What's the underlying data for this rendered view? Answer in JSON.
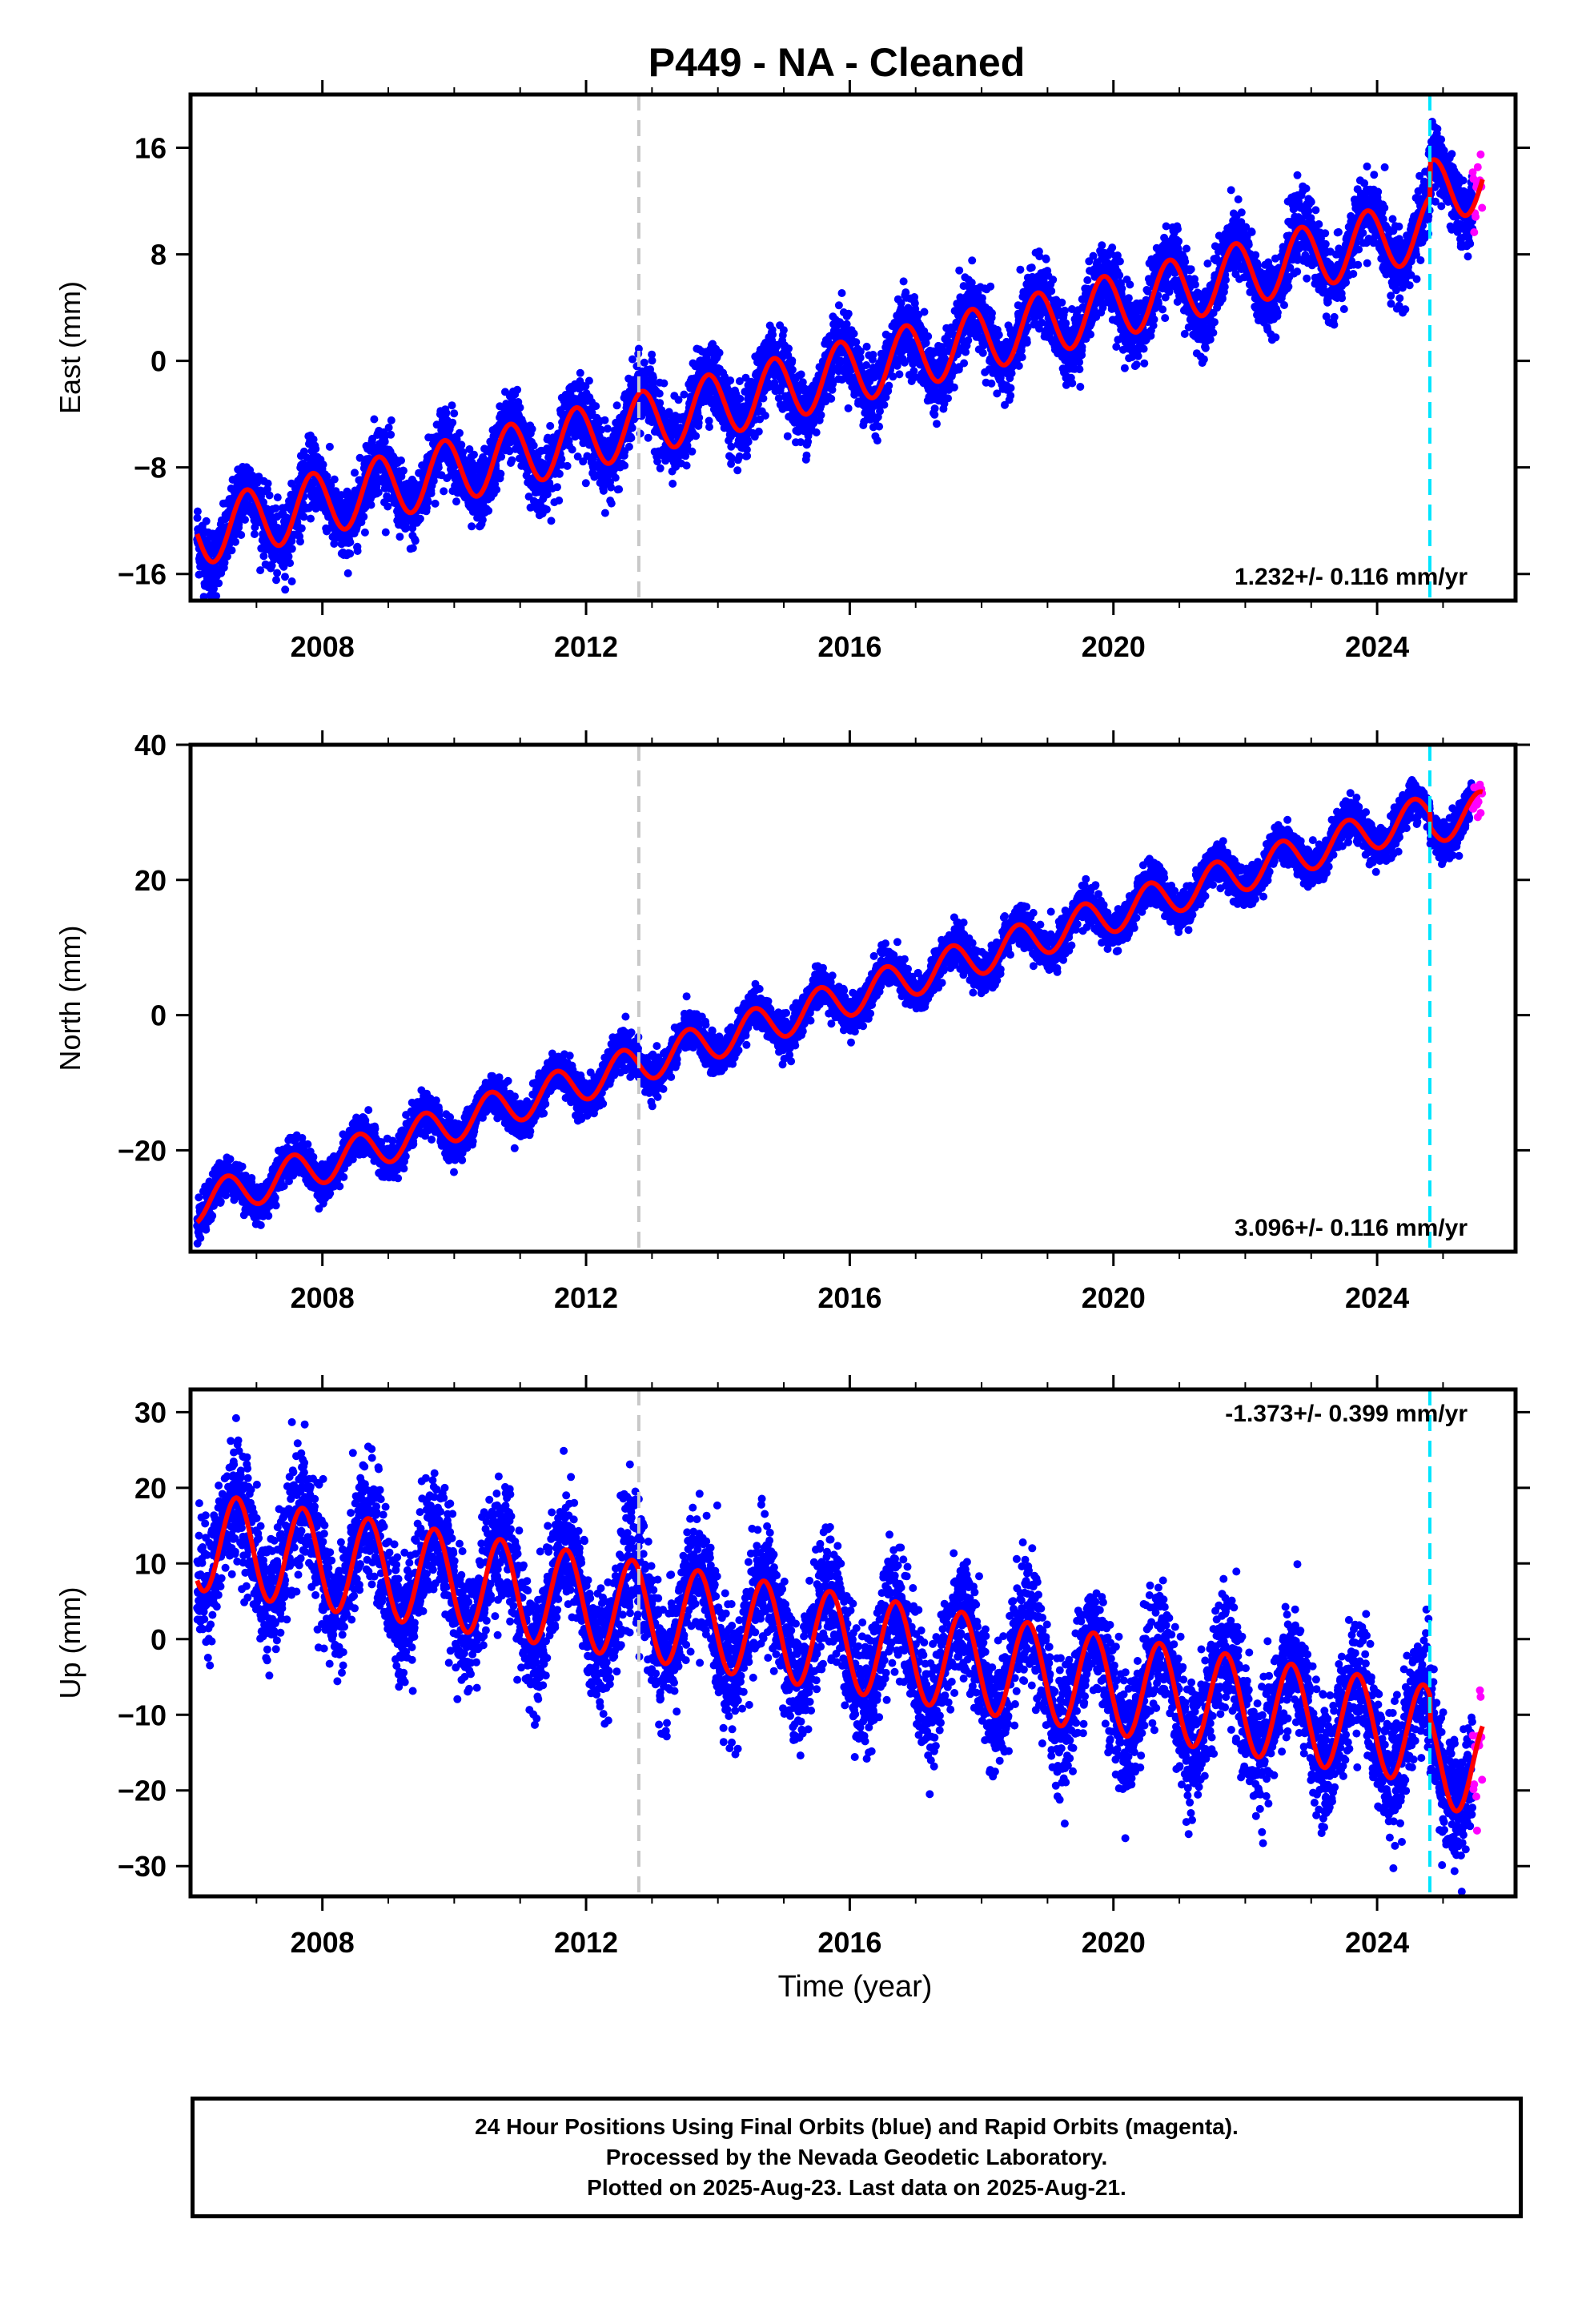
{
  "title": "P449  - NA - Cleaned",
  "colors": {
    "final_orbits": "#0000ff",
    "rapid_orbits": "#ff00ff",
    "model": "#ff0000",
    "marker_gray": "#c8c8c8",
    "marker_cyan": "#00e5ff"
  },
  "x_axis": {
    "label": "Time (year)",
    "ticks": [
      "2008",
      "2012",
      "2016",
      "2020",
      "2024"
    ],
    "range": [
      2006.0,
      2026.1
    ]
  },
  "chart_data": [
    {
      "type": "scatter",
      "component": "east",
      "ylabel": "East (mm)",
      "ylim": [
        -18,
        20
      ],
      "yticks": [
        "-16",
        "-8",
        "0",
        "8",
        "16"
      ],
      "rate_label": "1.232+/- 0.116 mm/yr",
      "rate_position": "bottom-right",
      "x_range": [
        2006.1,
        2025.6
      ],
      "model": {
        "start": -13.0,
        "trend": 1.232,
        "amplitude": 2.4,
        "peak_phase": 0.85,
        "scatter": 1.3,
        "offset_2024_8": 2.6
      },
      "vertical_markers": [
        {
          "x": 2012.8,
          "color": "gray"
        },
        {
          "x": 2024.8,
          "color": "cyan"
        }
      ]
    },
    {
      "type": "scatter",
      "component": "north",
      "ylabel": "North (mm)",
      "ylim": [
        -35,
        40
      ],
      "yticks": [
        "-20",
        "0",
        "20",
        "40"
      ],
      "rate_label": "3.096+/- 0.116 mm/yr",
      "rate_position": "bottom-right",
      "x_range": [
        2006.1,
        2025.6
      ],
      "model": {
        "start": -28.0,
        "trend": 3.096,
        "amplitude": 2.8,
        "peak_phase": 0.55,
        "scatter": 1.4,
        "offset_2024_8": -2.0
      },
      "vertical_markers": [
        {
          "x": 2012.8,
          "color": "gray"
        },
        {
          "x": 2024.8,
          "color": "cyan"
        }
      ]
    },
    {
      "type": "scatter",
      "component": "up",
      "ylabel": "Up (mm)",
      "ylim": [
        -34,
        33
      ],
      "yticks": [
        "-30",
        "-20",
        "-10",
        "0",
        "10",
        "20",
        "30"
      ],
      "rate_label": "-1.373+/- 0.399 mm/yr",
      "rate_position": "top-right",
      "x_range": [
        2006.1,
        2025.6
      ],
      "model": {
        "start": 13.0,
        "trend": -1.373,
        "amplitude": 6.5,
        "peak_phase": 0.7,
        "scatter": 4.0,
        "offset_2024_8": -3.0
      },
      "vertical_markers": [
        {
          "x": 2012.8,
          "color": "gray"
        },
        {
          "x": 2024.8,
          "color": "cyan"
        }
      ]
    }
  ],
  "footer": {
    "line1": "24 Hour Positions Using Final Orbits (blue) and Rapid Orbits (magenta).",
    "line2": "Processed by the Nevada Geodetic Laboratory.",
    "line3": "Plotted on 2025-Aug-23. Last data on 2025-Aug-21."
  }
}
